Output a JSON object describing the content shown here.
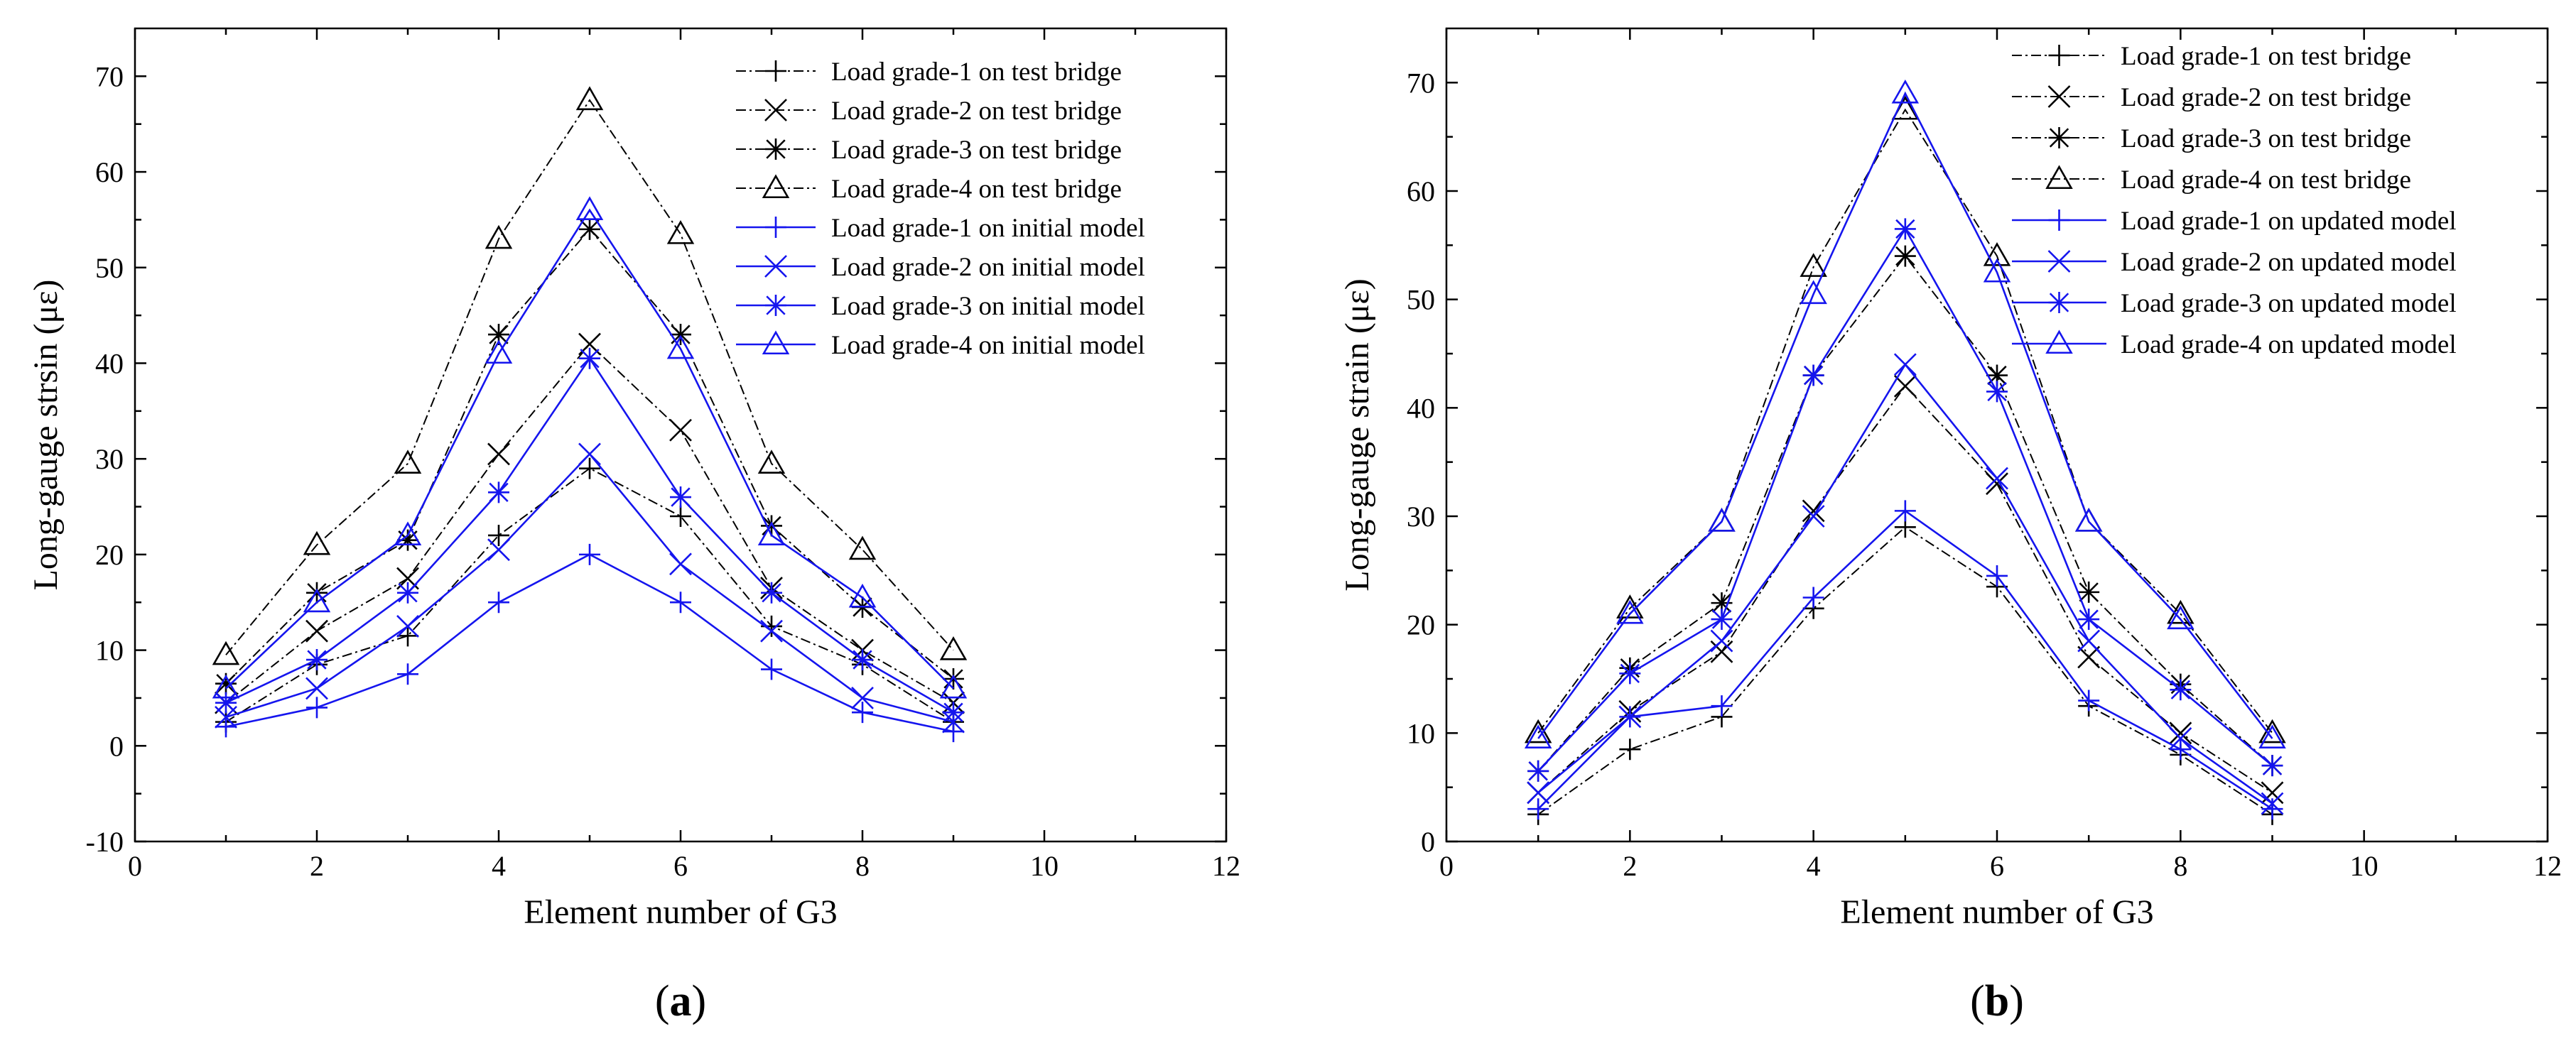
{
  "chart_data": [
    {
      "id": "a",
      "type": "line",
      "panel_label": "a",
      "xlabel": "Element number of G3",
      "ylabel": "Long-gauge strsin (με)",
      "xlim": [
        0,
        12
      ],
      "ylim": [
        -10,
        75
      ],
      "xticks": [
        0,
        2,
        4,
        6,
        8,
        10,
        12
      ],
      "yticks": [
        -10,
        0,
        10,
        20,
        30,
        40,
        50,
        60,
        70
      ],
      "grid": false,
      "legend_position": "top-right",
      "x": [
        1,
        2,
        3,
        4,
        5,
        6,
        7,
        8,
        9
      ],
      "series": [
        {
          "name": "Load grade-1 on test bridge",
          "color": "#000000",
          "dash": true,
          "marker": "plus",
          "values": [
            2.5,
            8.5,
            11.5,
            22,
            29,
            24,
            12.5,
            8.5,
            2.5
          ]
        },
        {
          "name": "Load grade-2 on test bridge",
          "color": "#000000",
          "dash": true,
          "marker": "x",
          "values": [
            4.5,
            12,
            17.5,
            30.5,
            42,
            33,
            16.5,
            10,
            4.5
          ]
        },
        {
          "name": "Load grade-3 on test bridge",
          "color": "#000000",
          "dash": true,
          "marker": "asterisk",
          "values": [
            6.5,
            16,
            21.5,
            43,
            54,
            43,
            23,
            14.5,
            7
          ]
        },
        {
          "name": "Load grade-4 on test bridge",
          "color": "#000000",
          "dash": true,
          "marker": "triangle",
          "values": [
            9.5,
            21,
            29.5,
            53,
            67.5,
            53.5,
            29.5,
            20.5,
            10
          ]
        },
        {
          "name": "Load grade-1 on  initial model",
          "color": "#1515ee",
          "dash": false,
          "marker": "plus",
          "values": [
            2,
            4,
            7.5,
            15,
            20,
            15,
            8,
            3.5,
            1.5
          ]
        },
        {
          "name": "Load grade-2 on  initial model",
          "color": "#1515ee",
          "dash": false,
          "marker": "x",
          "values": [
            3,
            6,
            12.5,
            20.5,
            30.5,
            19,
            12,
            5,
            2.5
          ]
        },
        {
          "name": "Load grade-3 on  initial model",
          "color": "#1515ee",
          "dash": false,
          "marker": "asterisk",
          "values": [
            4.5,
            9,
            16,
            26.5,
            40.5,
            26,
            16,
            9,
            3.5
          ]
        },
        {
          "name": "Load grade-4 on  initial model",
          "color": "#1515ee",
          "dash": false,
          "marker": "triangle",
          "values": [
            6,
            15,
            22,
            41,
            56,
            41.5,
            22,
            15.5,
            6
          ]
        }
      ]
    },
    {
      "id": "b",
      "type": "line",
      "panel_label": "b",
      "xlabel": "Element number of G3",
      "ylabel": "Long-gauge strain (με)",
      "xlim": [
        0,
        12
      ],
      "ylim": [
        0,
        75
      ],
      "xticks": [
        0,
        2,
        4,
        6,
        8,
        10,
        12
      ],
      "yticks": [
        0,
        10,
        20,
        30,
        40,
        50,
        60,
        70
      ],
      "grid": false,
      "legend_position": "top-right",
      "x": [
        1,
        2,
        3,
        4,
        5,
        6,
        7,
        8,
        9
      ],
      "series": [
        {
          "name": "Load grade-1 on test bridge",
          "color": "#000000",
          "dash": true,
          "marker": "plus",
          "values": [
            2.5,
            8.5,
            11.5,
            21.5,
            29,
            23.5,
            12.5,
            8,
            2.5
          ]
        },
        {
          "name": "Load grade-2 on  test bridge",
          "color": "#000000",
          "dash": true,
          "marker": "x",
          "values": [
            4.5,
            12,
            17.5,
            30.5,
            42,
            33,
            17,
            10,
            4.5
          ]
        },
        {
          "name": "Load grade-3 on  test bridge",
          "color": "#000000",
          "dash": true,
          "marker": "asterisk",
          "values": [
            6.5,
            16,
            22,
            43,
            54,
            43,
            23,
            14.5,
            7
          ]
        },
        {
          "name": "Load grade-4 on  test bridge",
          "color": "#000000",
          "dash": true,
          "marker": "triangle",
          "values": [
            10,
            21.5,
            29.5,
            53,
            67.5,
            54,
            29.5,
            21,
            10
          ]
        },
        {
          "name": "Load grade-1 on  updated model",
          "color": "#1515ee",
          "dash": false,
          "marker": "plus",
          "values": [
            3,
            11.5,
            12.5,
            22.5,
            30.5,
            24.5,
            13,
            8.5,
            3
          ]
        },
        {
          "name": "Load grade-2 on  updated model",
          "color": "#1515ee",
          "dash": false,
          "marker": "x",
          "values": [
            4.5,
            11.5,
            18.5,
            30,
            44,
            33.5,
            18.5,
            9.5,
            3.5
          ]
        },
        {
          "name": "Load grade-3 on  updated model",
          "color": "#1515ee",
          "dash": false,
          "marker": "asterisk",
          "values": [
            6.5,
            15.5,
            20.5,
            43,
            56.5,
            41.5,
            20.5,
            14,
            7
          ]
        },
        {
          "name": "Load grade-4 on  updated model",
          "color": "#1515ee",
          "dash": false,
          "marker": "triangle",
          "values": [
            9.5,
            21,
            29.5,
            50.5,
            69,
            52.5,
            29.5,
            20.5,
            9.5
          ]
        }
      ]
    }
  ]
}
